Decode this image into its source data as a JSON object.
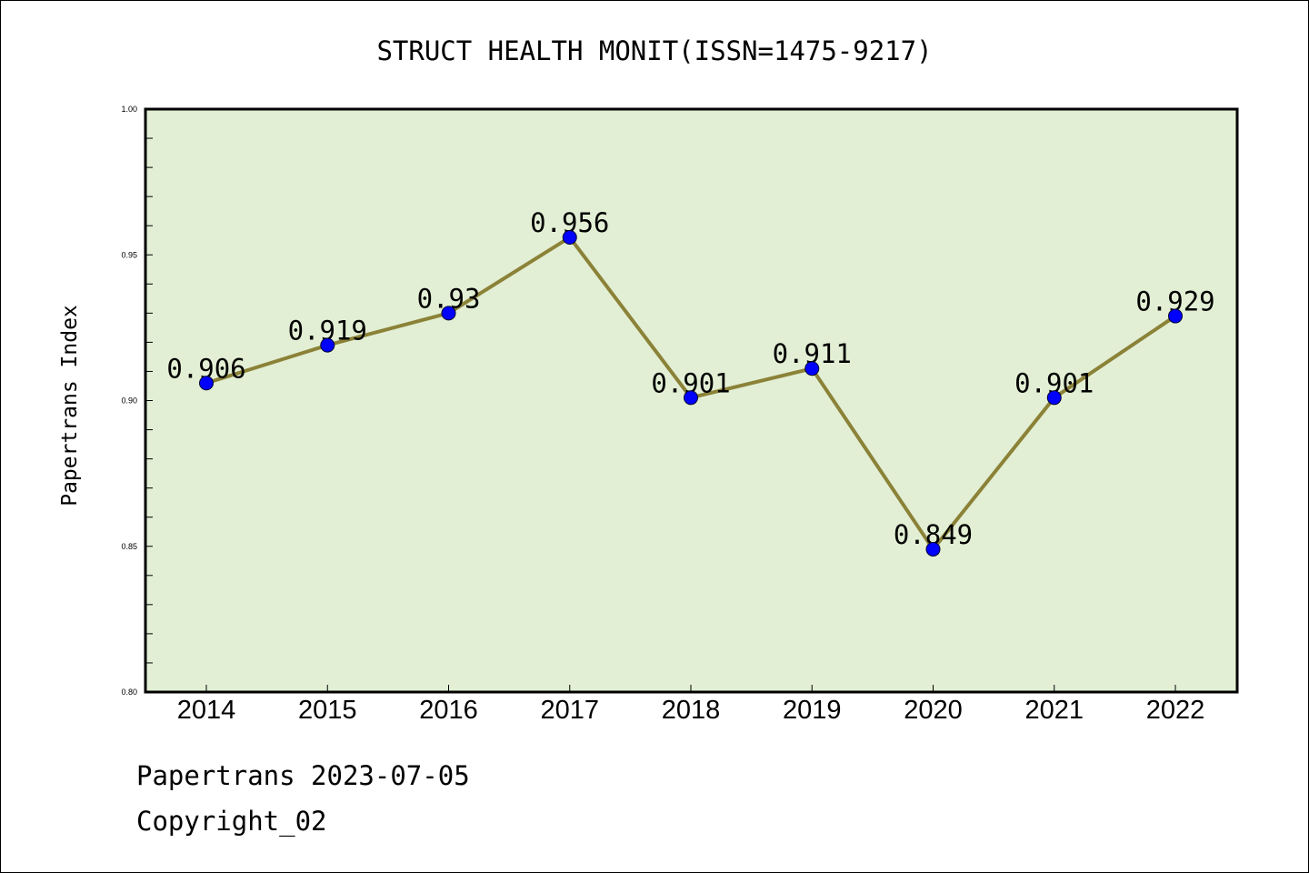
{
  "chart_data": {
    "type": "line",
    "title": "STRUCT HEALTH MONIT(ISSN=1475-9217)",
    "xlabel": "",
    "ylabel": "Papertrans Index",
    "categories": [
      "2014",
      "2015",
      "2016",
      "2017",
      "2018",
      "2019",
      "2020",
      "2021",
      "2022"
    ],
    "series": [
      {
        "values": [
          0.906,
          0.919,
          0.93,
          0.956,
          0.901,
          0.911,
          0.849,
          0.901,
          0.929
        ],
        "data_labels": [
          "0.906",
          "0.919",
          "0.93",
          "0.956",
          "0.901",
          "0.911",
          "0.849",
          "0.901",
          "0.929"
        ]
      }
    ],
    "ylim": [
      0.8,
      1.0
    ],
    "yticks": [
      0.8,
      0.85,
      0.9,
      0.95,
      1.0
    ],
    "ytick_labels": [
      "0.80",
      "0.85",
      "0.90",
      "0.95",
      "1.00"
    ],
    "grid": false,
    "legend": "none"
  },
  "footer": {
    "date_line": "Papertrans 2023-07-05",
    "copyright_line": "Copyright_02"
  },
  "colors": {
    "plot_background": "#e2efd4",
    "line": "#8b8238",
    "marker": "#0000ff",
    "axes": "#000000"
  }
}
